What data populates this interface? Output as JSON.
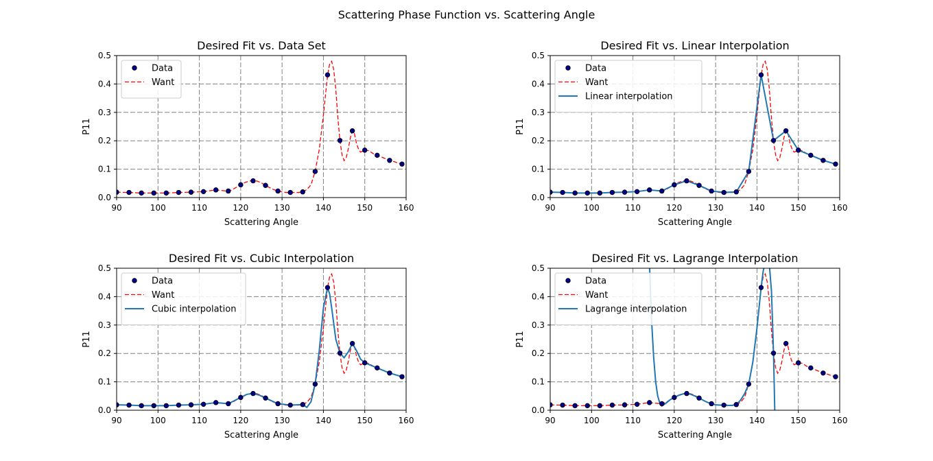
{
  "figure_title": "Scattering Phase Function vs. Scattering Angle",
  "colors": {
    "data_marker": "#00008b",
    "want": "#ff0000",
    "interp": "#1f77b4",
    "grid": "#808080"
  },
  "chart_data": [
    {
      "type": "line",
      "title": "Desired Fit vs. Data Set",
      "xlabel": "Scattering Angle",
      "ylabel": "P11",
      "xlim": [
        90,
        160
      ],
      "ylim": [
        0,
        0.5
      ],
      "xticks": [
        "90",
        "100",
        "110",
        "120",
        "130",
        "140",
        "150",
        "160"
      ],
      "yticks": [
        "0.0",
        "0.1",
        "0.2",
        "0.3",
        "0.4",
        "0.5"
      ],
      "grid": true,
      "legend_position": "upper-left",
      "series": [
        {
          "name": "Data",
          "kind": "scatter",
          "x": [
            90,
            93,
            96,
            99,
            102,
            105,
            108,
            111,
            114,
            117,
            120,
            123,
            126,
            129,
            132,
            135,
            138,
            141,
            144,
            147,
            150,
            153,
            156,
            159
          ],
          "y": [
            0.019,
            0.018,
            0.016,
            0.016,
            0.016,
            0.018,
            0.019,
            0.021,
            0.027,
            0.023,
            0.045,
            0.059,
            0.043,
            0.023,
            0.018,
            0.02,
            0.092,
            0.432,
            0.201,
            0.235,
            0.167,
            0.149,
            0.131,
            0.118
          ]
        },
        {
          "name": "Want",
          "kind": "dashed",
          "x": [
            90,
            93,
            96,
            99,
            102,
            105,
            108,
            111,
            113,
            114,
            116,
            117,
            118,
            120,
            121,
            122,
            123,
            124,
            125,
            126,
            127,
            128,
            129,
            130,
            131,
            132,
            133,
            134,
            135,
            136,
            137,
            138,
            139,
            140,
            140.5,
            141,
            141.5,
            142,
            142.5,
            143,
            143.5,
            144,
            144.5,
            145,
            145.5,
            146,
            146.5,
            147,
            147.5,
            148,
            148.5,
            149,
            150,
            151,
            152,
            153,
            154,
            155,
            156,
            157,
            158,
            159
          ],
          "y": [
            0.019,
            0.018,
            0.016,
            0.016,
            0.016,
            0.018,
            0.019,
            0.021,
            0.025,
            0.027,
            0.024,
            0.022,
            0.028,
            0.045,
            0.053,
            0.058,
            0.06,
            0.058,
            0.052,
            0.043,
            0.035,
            0.028,
            0.023,
            0.02,
            0.018,
            0.018,
            0.018,
            0.018,
            0.02,
            0.028,
            0.045,
            0.092,
            0.17,
            0.29,
            0.36,
            0.43,
            0.47,
            0.48,
            0.45,
            0.38,
            0.28,
            0.2,
            0.15,
            0.13,
            0.14,
            0.17,
            0.21,
            0.235,
            0.225,
            0.19,
            0.17,
            0.16,
            0.167,
            0.165,
            0.155,
            0.149,
            0.143,
            0.137,
            0.131,
            0.127,
            0.122,
            0.118
          ]
        }
      ]
    },
    {
      "type": "line",
      "title": "Desired Fit vs. Linear Interpolation",
      "xlabel": "Scattering Angle",
      "ylabel": "P11",
      "xlim": [
        90,
        160
      ],
      "ylim": [
        0,
        0.5
      ],
      "xticks": [
        "90",
        "100",
        "110",
        "120",
        "130",
        "140",
        "150",
        "160"
      ],
      "yticks": [
        "0.0",
        "0.1",
        "0.2",
        "0.3",
        "0.4",
        "0.5"
      ],
      "grid": true,
      "legend_position": "upper-left",
      "series": [
        {
          "name": "Data",
          "kind": "scatter",
          "x": [
            90,
            93,
            96,
            99,
            102,
            105,
            108,
            111,
            114,
            117,
            120,
            123,
            126,
            129,
            132,
            135,
            138,
            141,
            144,
            147,
            150,
            153,
            156,
            159
          ],
          "y": [
            0.019,
            0.018,
            0.016,
            0.016,
            0.016,
            0.018,
            0.019,
            0.021,
            0.027,
            0.023,
            0.045,
            0.059,
            0.043,
            0.023,
            0.018,
            0.02,
            0.092,
            0.432,
            0.201,
            0.235,
            0.167,
            0.149,
            0.131,
            0.118
          ]
        },
        {
          "name": "Want",
          "kind": "dashed",
          "x": [
            90,
            93,
            96,
            99,
            102,
            105,
            108,
            111,
            113,
            114,
            116,
            117,
            118,
            120,
            121,
            122,
            123,
            124,
            125,
            126,
            127,
            128,
            129,
            130,
            131,
            132,
            133,
            134,
            135,
            136,
            137,
            138,
            139,
            140,
            140.5,
            141,
            141.5,
            142,
            142.5,
            143,
            143.5,
            144,
            144.5,
            145,
            145.5,
            146,
            146.5,
            147,
            147.5,
            148,
            148.5,
            149,
            150,
            151,
            152,
            153,
            154,
            155,
            156,
            157,
            158,
            159
          ],
          "y": [
            0.019,
            0.018,
            0.016,
            0.016,
            0.016,
            0.018,
            0.019,
            0.021,
            0.025,
            0.027,
            0.024,
            0.022,
            0.028,
            0.045,
            0.053,
            0.058,
            0.06,
            0.058,
            0.052,
            0.043,
            0.035,
            0.028,
            0.023,
            0.02,
            0.018,
            0.018,
            0.018,
            0.018,
            0.02,
            0.028,
            0.045,
            0.092,
            0.17,
            0.29,
            0.36,
            0.43,
            0.47,
            0.48,
            0.45,
            0.38,
            0.28,
            0.2,
            0.15,
            0.13,
            0.14,
            0.17,
            0.21,
            0.235,
            0.225,
            0.19,
            0.17,
            0.16,
            0.167,
            0.165,
            0.155,
            0.149,
            0.143,
            0.137,
            0.131,
            0.127,
            0.122,
            0.118
          ]
        },
        {
          "name": "Linear interpolation",
          "kind": "solid",
          "x": [
            90,
            93,
            96,
            99,
            102,
            105,
            108,
            111,
            114,
            117,
            120,
            123,
            126,
            129,
            132,
            135,
            138,
            141,
            144,
            147,
            150,
            153,
            156,
            159
          ],
          "y": [
            0.019,
            0.018,
            0.016,
            0.016,
            0.016,
            0.018,
            0.019,
            0.021,
            0.027,
            0.023,
            0.045,
            0.059,
            0.043,
            0.023,
            0.018,
            0.02,
            0.092,
            0.432,
            0.201,
            0.235,
            0.167,
            0.149,
            0.131,
            0.118
          ]
        }
      ]
    },
    {
      "type": "line",
      "title": "Desired Fit vs. Cubic Interpolation",
      "xlabel": "Scattering Angle",
      "ylabel": "P11",
      "xlim": [
        90,
        160
      ],
      "ylim": [
        0,
        0.5
      ],
      "xticks": [
        "90",
        "100",
        "110",
        "120",
        "130",
        "140",
        "150",
        "160"
      ],
      "yticks": [
        "0.0",
        "0.1",
        "0.2",
        "0.3",
        "0.4",
        "0.5"
      ],
      "grid": true,
      "legend_position": "upper-left",
      "series": [
        {
          "name": "Data",
          "kind": "scatter",
          "x": [
            90,
            93,
            96,
            99,
            102,
            105,
            108,
            111,
            114,
            117,
            120,
            123,
            126,
            129,
            132,
            135,
            138,
            141,
            144,
            147,
            150,
            153,
            156,
            159
          ],
          "y": [
            0.019,
            0.018,
            0.016,
            0.016,
            0.016,
            0.018,
            0.019,
            0.021,
            0.027,
            0.023,
            0.045,
            0.059,
            0.043,
            0.023,
            0.018,
            0.02,
            0.092,
            0.432,
            0.201,
            0.235,
            0.167,
            0.149,
            0.131,
            0.118
          ]
        },
        {
          "name": "Want",
          "kind": "dashed",
          "x": [
            90,
            93,
            96,
            99,
            102,
            105,
            108,
            111,
            113,
            114,
            116,
            117,
            118,
            120,
            121,
            122,
            123,
            124,
            125,
            126,
            127,
            128,
            129,
            130,
            131,
            132,
            133,
            134,
            135,
            136,
            137,
            138,
            139,
            140,
            140.5,
            141,
            141.5,
            142,
            142.5,
            143,
            143.5,
            144,
            144.5,
            145,
            145.5,
            146,
            146.5,
            147,
            147.5,
            148,
            148.5,
            149,
            150,
            151,
            152,
            153,
            154,
            155,
            156,
            157,
            158,
            159
          ],
          "y": [
            0.019,
            0.018,
            0.016,
            0.016,
            0.016,
            0.018,
            0.019,
            0.021,
            0.025,
            0.027,
            0.024,
            0.022,
            0.028,
            0.045,
            0.053,
            0.058,
            0.06,
            0.058,
            0.052,
            0.043,
            0.035,
            0.028,
            0.023,
            0.02,
            0.018,
            0.018,
            0.018,
            0.018,
            0.02,
            0.028,
            0.045,
            0.092,
            0.17,
            0.29,
            0.36,
            0.43,
            0.47,
            0.48,
            0.45,
            0.38,
            0.28,
            0.2,
            0.15,
            0.13,
            0.14,
            0.17,
            0.21,
            0.235,
            0.225,
            0.19,
            0.17,
            0.16,
            0.167,
            0.165,
            0.155,
            0.149,
            0.143,
            0.137,
            0.131,
            0.127,
            0.122,
            0.118
          ]
        },
        {
          "name": "Cubic interpolation",
          "kind": "solid",
          "x": [
            90,
            93,
            96,
            99,
            102,
            105,
            108,
            111,
            114,
            117,
            120,
            121.5,
            123,
            124.5,
            126,
            129,
            132,
            135,
            136,
            137,
            138,
            139,
            140,
            141,
            141.5,
            142,
            143,
            144,
            145,
            146,
            147,
            148,
            149,
            150,
            153,
            156,
            159
          ],
          "y": [
            0.019,
            0.018,
            0.016,
            0.016,
            0.016,
            0.018,
            0.019,
            0.021,
            0.027,
            0.023,
            0.045,
            0.056,
            0.059,
            0.053,
            0.043,
            0.023,
            0.018,
            0.02,
            0.01,
            0.03,
            0.092,
            0.21,
            0.36,
            0.432,
            0.41,
            0.36,
            0.25,
            0.201,
            0.185,
            0.205,
            0.235,
            0.21,
            0.18,
            0.167,
            0.149,
            0.131,
            0.118
          ]
        }
      ]
    },
    {
      "type": "line",
      "title": "Desired Fit vs. Lagrange Interpolation",
      "xlabel": "Scattering Angle",
      "ylabel": "P11",
      "xlim": [
        90,
        160
      ],
      "ylim": [
        0,
        0.5
      ],
      "xticks": [
        "90",
        "100",
        "110",
        "120",
        "130",
        "140",
        "150",
        "160"
      ],
      "yticks": [
        "0.0",
        "0.1",
        "0.2",
        "0.3",
        "0.4",
        "0.5"
      ],
      "grid": true,
      "legend_position": "upper-left",
      "series": [
        {
          "name": "Data",
          "kind": "scatter",
          "x": [
            90,
            93,
            96,
            99,
            102,
            105,
            108,
            111,
            114,
            117,
            120,
            123,
            126,
            129,
            132,
            135,
            138,
            141,
            144,
            147,
            150,
            153,
            156,
            159
          ],
          "y": [
            0.019,
            0.018,
            0.016,
            0.016,
            0.016,
            0.018,
            0.019,
            0.021,
            0.027,
            0.023,
            0.045,
            0.059,
            0.043,
            0.023,
            0.018,
            0.02,
            0.092,
            0.432,
            0.201,
            0.235,
            0.167,
            0.149,
            0.131,
            0.118
          ]
        },
        {
          "name": "Want",
          "kind": "dashed",
          "x": [
            90,
            93,
            96,
            99,
            102,
            105,
            108,
            111,
            113,
            114,
            116,
            117,
            118,
            120,
            121,
            122,
            123,
            124,
            125,
            126,
            127,
            128,
            129,
            130,
            131,
            132,
            133,
            134,
            135,
            136,
            137,
            138,
            139,
            140,
            140.5,
            141,
            141.5,
            142,
            142.5,
            143,
            143.5,
            144,
            144.5,
            145,
            145.5,
            146,
            146.5,
            147,
            147.5,
            148,
            148.5,
            149,
            150,
            151,
            152,
            153,
            154,
            155,
            156,
            157,
            158,
            159
          ],
          "y": [
            0.019,
            0.018,
            0.016,
            0.016,
            0.016,
            0.018,
            0.019,
            0.021,
            0.025,
            0.027,
            0.024,
            0.022,
            0.028,
            0.045,
            0.053,
            0.058,
            0.06,
            0.058,
            0.052,
            0.043,
            0.035,
            0.028,
            0.023,
            0.02,
            0.018,
            0.018,
            0.018,
            0.018,
            0.02,
            0.028,
            0.045,
            0.092,
            0.17,
            0.29,
            0.36,
            0.43,
            0.47,
            0.48,
            0.45,
            0.38,
            0.28,
            0.2,
            0.15,
            0.13,
            0.14,
            0.17,
            0.21,
            0.235,
            0.225,
            0.19,
            0.17,
            0.16,
            0.167,
            0.165,
            0.155,
            0.149,
            0.143,
            0.137,
            0.131,
            0.127,
            0.122,
            0.118
          ]
        },
        {
          "name": "Lagrange interpolation",
          "kind": "solid",
          "x": [
            114,
            114.5,
            115,
            115.5,
            116,
            116.5,
            117,
            118,
            119,
            120,
            121,
            122,
            123,
            124,
            125,
            126,
            127,
            128,
            129,
            130,
            131,
            132,
            133,
            134,
            135,
            136,
            137,
            138,
            139,
            140,
            140.5,
            141,
            141.5,
            142,
            142.5,
            143,
            143.5,
            144,
            144.3
          ],
          "y": [
            0.52,
            0.32,
            0.19,
            0.1,
            0.05,
            0.025,
            0.015,
            0.025,
            0.037,
            0.045,
            0.052,
            0.057,
            0.059,
            0.056,
            0.05,
            0.043,
            0.035,
            0.028,
            0.023,
            0.019,
            0.018,
            0.018,
            0.017,
            0.017,
            0.02,
            0.035,
            0.058,
            0.092,
            0.17,
            0.29,
            0.36,
            0.432,
            0.49,
            0.52,
            0.54,
            0.51,
            0.42,
            0.201,
            0.0
          ]
        }
      ]
    }
  ]
}
